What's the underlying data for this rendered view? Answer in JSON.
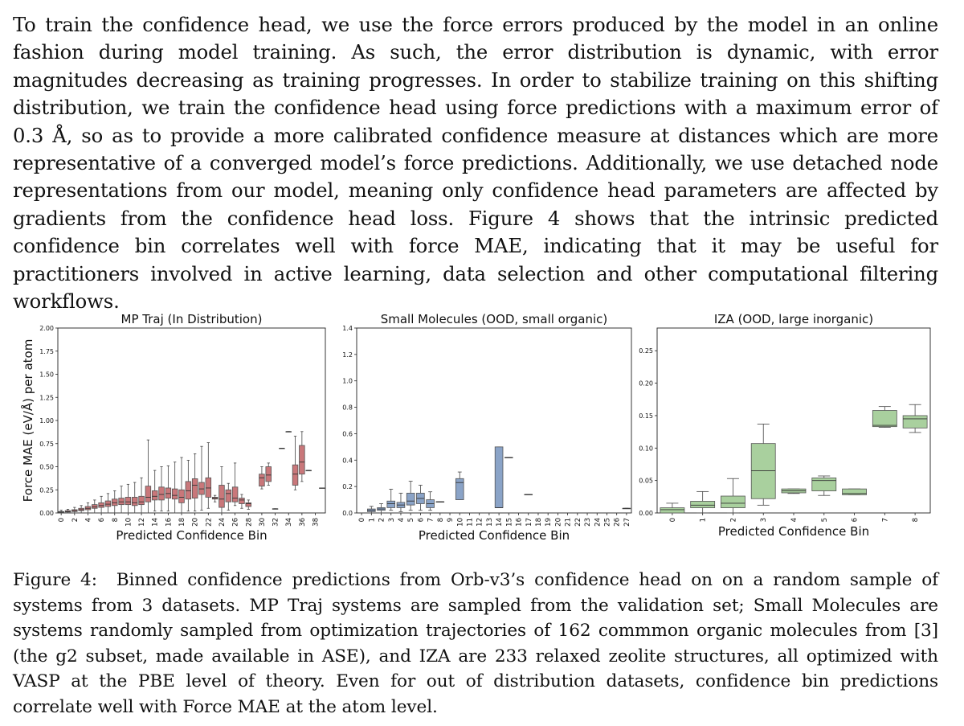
{
  "body_text": "To train the confidence head, we use the force errors produced by the model in an online fashion during model training.  As such, the error distribution is dynamic, with error magnitudes decreasing as training progresses.  In order to stabilize training on this shifting distribution, we train the confidence head using force predictions with a maximum error of 0.3 Å, so as to provide a more calibrated confidence measure at distances which are more representative of a converged model’s force predictions.  Additionally, we use detached node representations from our model, meaning only confidence head parameters are affected by gradients from the confidence head loss.  Figure 4 shows that the intrinsic predicted confidence bin correlates well with force MAE, indicating that it may be useful for practitioners involved in active learning, data selection and other computational filtering workflows.",
  "figure": {
    "label": "Figure 4:",
    "caption": "Binned confidence predictions from Orb-v3’s confidence head on on a random sample of systems from 3 datasets.  MP Traj systems are sampled from the validation set; Small Molecules are systems randomly sampled from optimization trajectories of 162 commmon organic molecules from [3] (the g2 subset, made available in ASE), and IZA are 233 relaxed zeolite structures, all optimized with VASP at the PBE level of theory.  Even for out of distribution datasets, confidence bin predictions correlate well with Force MAE at the atom level."
  },
  "colors": {
    "mptraj": "#c9777a",
    "small_molecules": "#8aa3c7",
    "iza": "#a9d09e",
    "whisker": "#444444",
    "median": "#333333"
  },
  "chart_data": [
    {
      "type": "box",
      "title": "MP Traj (In Distribution)",
      "xlabel": "Predicted Confidence Bin",
      "ylabel": "Force MAE (eV/Å) per atom",
      "ylim": [
        0,
        2.0
      ],
      "yticks": [
        "0.00",
        "0.25",
        "0.50",
        "0.75",
        "1.00",
        "1.25",
        "1.50",
        "1.75",
        "2.00"
      ],
      "ytick_values": [
        0,
        0.25,
        0.5,
        0.75,
        1.0,
        1.25,
        1.5,
        1.75,
        2.0
      ],
      "xrange": [
        -0.5,
        39.5
      ],
      "xticks": [
        "0",
        "2",
        "4",
        "6",
        "8",
        "10",
        "12",
        "14",
        "16",
        "18",
        "20",
        "22",
        "24",
        "26",
        "28",
        "30",
        "32",
        "34",
        "36",
        "38"
      ],
      "boxes": [
        {
          "x": 0,
          "lo": 0.0,
          "q1": 0.005,
          "med": 0.01,
          "q3": 0.015,
          "hi": 0.03
        },
        {
          "x": 1,
          "lo": 0.0,
          "q1": 0.01,
          "med": 0.015,
          "q3": 0.025,
          "hi": 0.04
        },
        {
          "x": 2,
          "lo": 0.0,
          "q1": 0.015,
          "med": 0.025,
          "q3": 0.035,
          "hi": 0.06
        },
        {
          "x": 3,
          "lo": 0.0,
          "q1": 0.025,
          "med": 0.035,
          "q3": 0.05,
          "hi": 0.08
        },
        {
          "x": 4,
          "lo": 0.0,
          "q1": 0.035,
          "med": 0.05,
          "q3": 0.07,
          "hi": 0.11
        },
        {
          "x": 5,
          "lo": 0.0,
          "q1": 0.05,
          "med": 0.065,
          "q3": 0.09,
          "hi": 0.14
        },
        {
          "x": 6,
          "lo": 0.0,
          "q1": 0.06,
          "med": 0.08,
          "q3": 0.11,
          "hi": 0.18
        },
        {
          "x": 7,
          "lo": 0.0,
          "q1": 0.07,
          "med": 0.095,
          "q3": 0.13,
          "hi": 0.21
        },
        {
          "x": 8,
          "lo": 0.0,
          "q1": 0.08,
          "med": 0.11,
          "q3": 0.15,
          "hi": 0.24
        },
        {
          "x": 9,
          "lo": 0.0,
          "q1": 0.09,
          "med": 0.12,
          "q3": 0.16,
          "hi": 0.29
        },
        {
          "x": 10,
          "lo": 0.0,
          "q1": 0.09,
          "med": 0.12,
          "q3": 0.17,
          "hi": 0.31
        },
        {
          "x": 11,
          "lo": 0.0,
          "q1": 0.08,
          "med": 0.11,
          "q3": 0.17,
          "hi": 0.33
        },
        {
          "x": 12,
          "lo": 0.0,
          "q1": 0.09,
          "med": 0.12,
          "q3": 0.18,
          "hi": 0.38
        },
        {
          "x": 13,
          "lo": 0.0,
          "q1": 0.12,
          "med": 0.17,
          "q3": 0.29,
          "hi": 0.79
        },
        {
          "x": 14,
          "lo": 0.02,
          "q1": 0.14,
          "med": 0.18,
          "q3": 0.24,
          "hi": 0.46
        },
        {
          "x": 15,
          "lo": 0.02,
          "q1": 0.14,
          "med": 0.2,
          "q3": 0.28,
          "hi": 0.5
        },
        {
          "x": 16,
          "lo": 0.02,
          "q1": 0.16,
          "med": 0.21,
          "q3": 0.27,
          "hi": 0.51
        },
        {
          "x": 17,
          "lo": 0.0,
          "q1": 0.15,
          "med": 0.19,
          "q3": 0.26,
          "hi": 0.55
        },
        {
          "x": 18,
          "lo": 0.0,
          "q1": 0.11,
          "med": 0.17,
          "q3": 0.25,
          "hi": 0.6
        },
        {
          "x": 19,
          "lo": 0.02,
          "q1": 0.15,
          "med": 0.24,
          "q3": 0.34,
          "hi": 0.57
        },
        {
          "x": 20,
          "lo": 0.02,
          "q1": 0.16,
          "med": 0.3,
          "q3": 0.37,
          "hi": 0.64
        },
        {
          "x": 21,
          "lo": 0.03,
          "q1": 0.2,
          "med": 0.26,
          "q3": 0.33,
          "hi": 0.72
        },
        {
          "x": 22,
          "lo": 0.05,
          "q1": 0.17,
          "med": 0.27,
          "q3": 0.38,
          "hi": 0.76
        },
        {
          "x": 23,
          "lo": 0.12,
          "q1": 0.15,
          "med": 0.16,
          "q3": 0.17,
          "hi": 0.19
        },
        {
          "x": 24,
          "lo": 0.0,
          "q1": 0.06,
          "med": 0.15,
          "q3": 0.3,
          "hi": 0.5
        },
        {
          "x": 25,
          "lo": 0.03,
          "q1": 0.12,
          "med": 0.21,
          "q3": 0.25,
          "hi": 0.32
        },
        {
          "x": 26,
          "lo": 0.08,
          "q1": 0.12,
          "med": 0.16,
          "q3": 0.28,
          "hi": 0.54
        },
        {
          "x": 27,
          "lo": 0.05,
          "q1": 0.1,
          "med": 0.14,
          "q3": 0.16,
          "hi": 0.2
        },
        {
          "x": 28,
          "lo": 0.04,
          "q1": 0.07,
          "med": 0.1,
          "q3": 0.11,
          "hi": 0.14
        },
        {
          "x": 30,
          "lo": 0.26,
          "q1": 0.29,
          "med": 0.38,
          "q3": 0.42,
          "hi": 0.5
        },
        {
          "x": 31,
          "lo": 0.3,
          "q1": 0.34,
          "med": 0.41,
          "q3": 0.5,
          "hi": 0.54
        },
        {
          "x": 32,
          "lo": 0.045,
          "q1": 0.045,
          "med": 0.045,
          "q3": 0.045,
          "hi": 0.045
        },
        {
          "x": 33,
          "lo": 0.7,
          "q1": 0.7,
          "med": 0.7,
          "q3": 0.7,
          "hi": 0.7
        },
        {
          "x": 34,
          "lo": 0.88,
          "q1": 0.88,
          "med": 0.88,
          "q3": 0.88,
          "hi": 0.88
        },
        {
          "x": 35,
          "lo": 0.25,
          "q1": 0.3,
          "med": 0.42,
          "q3": 0.52,
          "hi": 0.83
        },
        {
          "x": 36,
          "lo": 0.34,
          "q1": 0.42,
          "med": 0.55,
          "q3": 0.73,
          "hi": 0.88
        },
        {
          "x": 37,
          "lo": 0.46,
          "q1": 0.46,
          "med": 0.46,
          "q3": 0.46,
          "hi": 0.46
        },
        {
          "x": 39,
          "lo": 0.27,
          "q1": 0.27,
          "med": 0.27,
          "q3": 0.27,
          "hi": 0.27
        }
      ]
    },
    {
      "type": "box",
      "title": "Small Molecules (OOD, small organic)",
      "xlabel": "Predicted Confidence Bin",
      "ylim": [
        0,
        1.4
      ],
      "yticks": [
        "0.0",
        "0.2",
        "0.4",
        "0.6",
        "0.8",
        "1.0",
        "1.2",
        "1.4"
      ],
      "ytick_values": [
        0,
        0.2,
        0.4,
        0.6,
        0.8,
        1.0,
        1.2,
        1.4
      ],
      "xrange": [
        -0.5,
        27.5
      ],
      "xticks": [
        "0",
        "1",
        "2",
        "3",
        "4",
        "5",
        "6",
        "7",
        "8",
        "9",
        "10",
        "11",
        "12",
        "13",
        "14",
        "15",
        "16",
        "17",
        "18",
        "19",
        "20",
        "21",
        "22",
        "23",
        "24",
        "25",
        "26",
        "27"
      ],
      "boxes": [
        {
          "x": 1,
          "lo": 0.0,
          "q1": 0.01,
          "med": 0.02,
          "q3": 0.03,
          "hi": 0.05
        },
        {
          "x": 2,
          "lo": 0.0,
          "q1": 0.02,
          "med": 0.03,
          "q3": 0.04,
          "hi": 0.07
        },
        {
          "x": 3,
          "lo": 0.02,
          "q1": 0.04,
          "med": 0.07,
          "q3": 0.09,
          "hi": 0.18
        },
        {
          "x": 4,
          "lo": 0.01,
          "q1": 0.04,
          "med": 0.06,
          "q3": 0.08,
          "hi": 0.15
        },
        {
          "x": 5,
          "lo": 0.02,
          "q1": 0.06,
          "med": 0.09,
          "q3": 0.15,
          "hi": 0.24
        },
        {
          "x": 6,
          "lo": 0.02,
          "q1": 0.07,
          "med": 0.11,
          "q3": 0.15,
          "hi": 0.21
        },
        {
          "x": 7,
          "lo": 0.02,
          "q1": 0.04,
          "med": 0.07,
          "q3": 0.1,
          "hi": 0.16
        },
        {
          "x": 8,
          "lo": 0.085,
          "q1": 0.085,
          "med": 0.085,
          "q3": 0.085,
          "hi": 0.085
        },
        {
          "x": 10,
          "lo": 0.1,
          "q1": 0.1,
          "med": 0.23,
          "q3": 0.26,
          "hi": 0.31
        },
        {
          "x": 14,
          "lo": 0.04,
          "q1": 0.04,
          "med": 0.04,
          "q3": 0.5,
          "hi": 0.5
        },
        {
          "x": 15,
          "lo": 0.42,
          "q1": 0.42,
          "med": 0.42,
          "q3": 0.42,
          "hi": 0.42
        },
        {
          "x": 17,
          "lo": 0.14,
          "q1": 0.14,
          "med": 0.14,
          "q3": 0.14,
          "hi": 0.14
        },
        {
          "x": 27,
          "lo": 0.035,
          "q1": 0.035,
          "med": 0.035,
          "q3": 0.035,
          "hi": 0.035
        }
      ]
    },
    {
      "type": "box",
      "title": "IZA (OOD, large inorganic)",
      "xlabel": "Predicted Confidence Bin",
      "ylim": [
        0,
        0.285
      ],
      "yticks": [
        "0.00",
        "0.05",
        "0.10",
        "0.15",
        "0.20",
        "0.25"
      ],
      "ytick_values": [
        0,
        0.05,
        0.1,
        0.15,
        0.2,
        0.25
      ],
      "xrange": [
        -0.5,
        8.5
      ],
      "xticks": [
        "0",
        "1",
        "2",
        "3",
        "4",
        "5",
        "6",
        "7",
        "8"
      ],
      "boxes": [
        {
          "x": 0,
          "lo": 0.0,
          "q1": 0.0,
          "med": 0.005,
          "q3": 0.008,
          "hi": 0.015
        },
        {
          "x": 1,
          "lo": 0.0,
          "q1": 0.008,
          "med": 0.012,
          "q3": 0.018,
          "hi": 0.033
        },
        {
          "x": 2,
          "lo": 0.0,
          "q1": 0.008,
          "med": 0.015,
          "q3": 0.026,
          "hi": 0.053
        },
        {
          "x": 3,
          "lo": 0.012,
          "q1": 0.022,
          "med": 0.065,
          "q3": 0.107,
          "hi": 0.137
        },
        {
          "x": 4,
          "lo": 0.03,
          "q1": 0.031,
          "med": 0.034,
          "q3": 0.037,
          "hi": 0.037
        },
        {
          "x": 5,
          "lo": 0.027,
          "q1": 0.034,
          "med": 0.05,
          "q3": 0.054,
          "hi": 0.057
        },
        {
          "x": 6,
          "lo": 0.028,
          "q1": 0.028,
          "med": 0.03,
          "q3": 0.037,
          "hi": 0.037
        },
        {
          "x": 7,
          "lo": 0.132,
          "q1": 0.133,
          "med": 0.135,
          "q3": 0.158,
          "hi": 0.164
        },
        {
          "x": 8,
          "lo": 0.124,
          "q1": 0.131,
          "med": 0.145,
          "q3": 0.15,
          "hi": 0.167
        }
      ]
    }
  ]
}
